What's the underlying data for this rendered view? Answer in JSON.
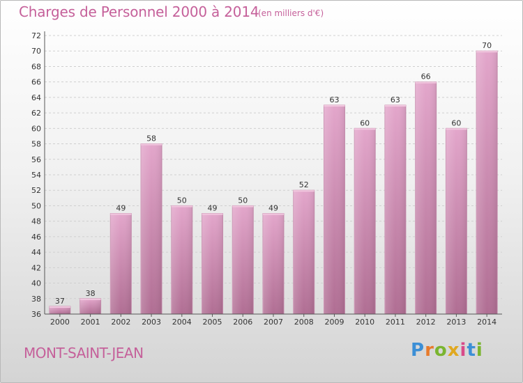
{
  "header": {
    "title": "Charges de Personnel 2000 à 2014",
    "subtitle": "(en milliers d'€)"
  },
  "footer": {
    "commune": "MONT-SAINT-JEAN",
    "brand_letters": [
      "P",
      "r",
      "o",
      "x",
      "i",
      "t",
      "i"
    ],
    "brand_colors": [
      "#3c8fd6",
      "#e87b2c",
      "#7ab530",
      "#e0a820",
      "#d84a8a",
      "#3c8fd6",
      "#7ab530"
    ]
  },
  "colors": {
    "bar_top": "#e3a6cb",
    "bar_bottom": "#b06e93",
    "accent": "#c5609a"
  },
  "chart_data": {
    "type": "bar",
    "categories": [
      "2000",
      "2001",
      "2002",
      "2003",
      "2004",
      "2005",
      "2006",
      "2007",
      "2008",
      "2009",
      "2010",
      "2011",
      "2012",
      "2013",
      "2014"
    ],
    "values": [
      37,
      38,
      49,
      58,
      50,
      49,
      50,
      49,
      52,
      63,
      60,
      63,
      66,
      60,
      70
    ],
    "title": "Charges de Personnel 2000 à 2014",
    "subtitle": "(en milliers d'€)",
    "ylim": [
      36,
      72
    ],
    "ytick_step": 2,
    "grid": true
  }
}
